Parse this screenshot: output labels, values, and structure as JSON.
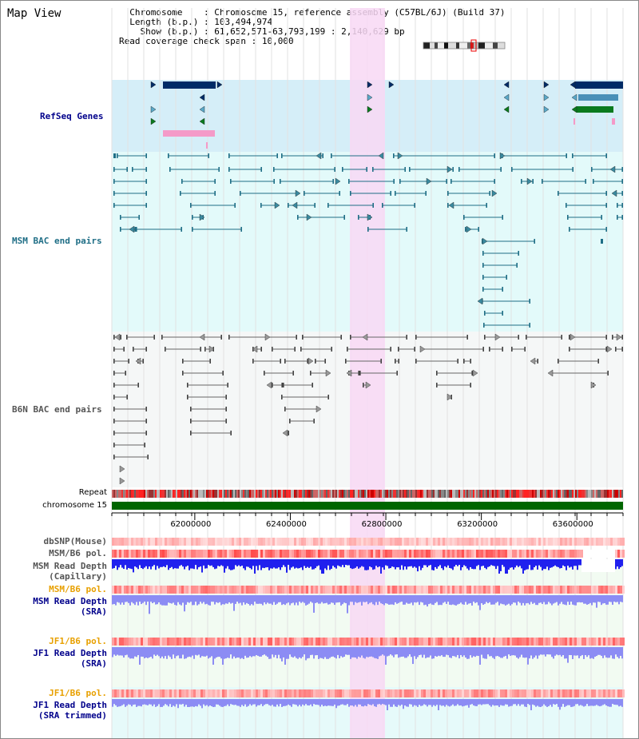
{
  "page": {
    "title": "Map View"
  },
  "info": {
    "chromosome_key": "Chromosome",
    "chromosome_val": "Chromosome 15, reference assembly (C57BL/6J) (Build 37)",
    "length_key": "Length (b.p.)",
    "length_val": "103,494,974",
    "show_key": "Show (b.p.)",
    "show_val": "61,652,571-63,793,199 : 2,140,629 bp",
    "span_key": "Read coverage check span",
    "span_val": "10,000"
  },
  "tracks": {
    "refseq": "RefSeq Genes",
    "msm_bac": "MSM BAC end pairs",
    "b6n_bac": "B6N BAC end pairs",
    "repeat": "Repeat",
    "chromosome": "chromosome 15",
    "dbsnp": "dbSNP(Mouse)",
    "msm_b6_pol": "MSM/B6 pol.",
    "msm_depth_cap_1": "MSM Read Depth",
    "msm_depth_cap_2": "(Capillary)",
    "msm_b6_pol_2": "MSM/B6 pol.",
    "msm_depth_sra_1": "MSM Read Depth",
    "msm_depth_sra_2": "(SRA)",
    "jf1_b6_pol": "JF1/B6 pol.",
    "jf1_depth_sra_1": "JF1 Read Depth",
    "jf1_depth_sra_2": "(SRA)",
    "jf1_b6_pol_2": "JF1/B6 pol.",
    "jf1_depth_trim_1": "JF1 Read Depth",
    "jf1_depth_trim_2": "(SRA trimmed)"
  },
  "axis": {
    "ticks": [
      {
        "value": 62000000,
        "label": "62000000"
      },
      {
        "value": 62400000,
        "label": "62400000"
      },
      {
        "value": 62800000,
        "label": "62800000"
      },
      {
        "value": 63200000,
        "label": "63200000"
      },
      {
        "value": 63600000,
        "label": "63600000"
      }
    ],
    "start": 61652571,
    "end": 63793199
  },
  "colors": {
    "refseq_bg": "#d5eef8",
    "msm_bg": "#e3fafa",
    "highlight": "#f8d8f4",
    "chromosome": "#006600",
    "depth_blue": "#2020ee",
    "depth_sra": "#8c8cf4",
    "pol_red": "#f04848",
    "navy": "#002b66",
    "teal": "#1f6e86",
    "grey": "#666666"
  }
}
